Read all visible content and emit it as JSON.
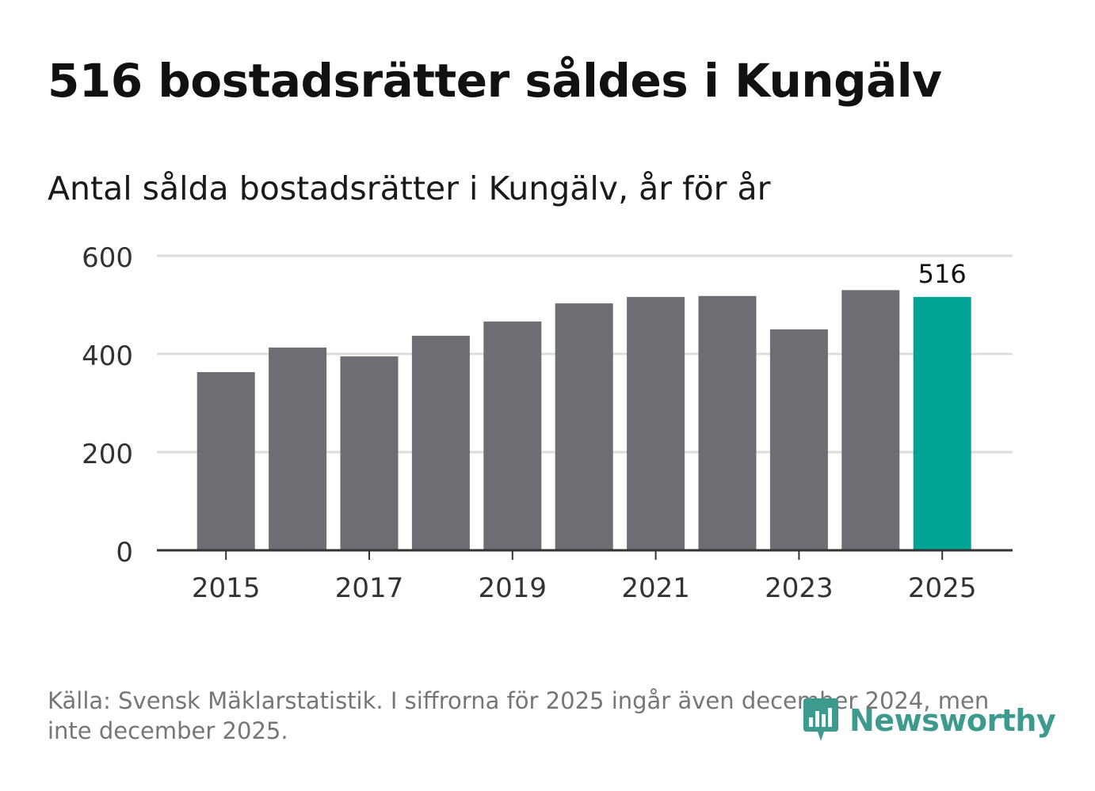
{
  "title": "516 bostadsrätter såldes i Kungälv",
  "subtitle": "Antal sålda bostadsrätter i Kungälv, år för år",
  "footer": {
    "source": "Källa: Svensk Mäklarstatistik. I siffrorna för 2025 ingår även december 2024, men inte december 2025."
  },
  "logo": {
    "text": "Newsworthy",
    "color": "#3d9a8e"
  },
  "colors": {
    "bar": "#6e6d73",
    "highlight": "#00a497",
    "grid": "#dddddd",
    "axis": "#333333"
  },
  "chart_data": {
    "type": "bar",
    "title": "Antal sålda bostadsrätter i Kungälv, år för år",
    "xlabel": "",
    "ylabel": "",
    "categories": [
      "2015",
      "2016",
      "2017",
      "2018",
      "2019",
      "2020",
      "2021",
      "2022",
      "2023",
      "2024",
      "2025"
    ],
    "values": [
      363,
      413,
      395,
      437,
      466,
      503,
      516,
      518,
      450,
      530,
      516
    ],
    "highlight_index": 10,
    "highlight_label": "516",
    "ylim": [
      0,
      600
    ],
    "yticks": [
      0,
      200,
      400,
      600
    ],
    "xtick_labels": [
      "2015",
      "2017",
      "2019",
      "2021",
      "2023",
      "2025"
    ],
    "grid": true,
    "legend": "none"
  }
}
